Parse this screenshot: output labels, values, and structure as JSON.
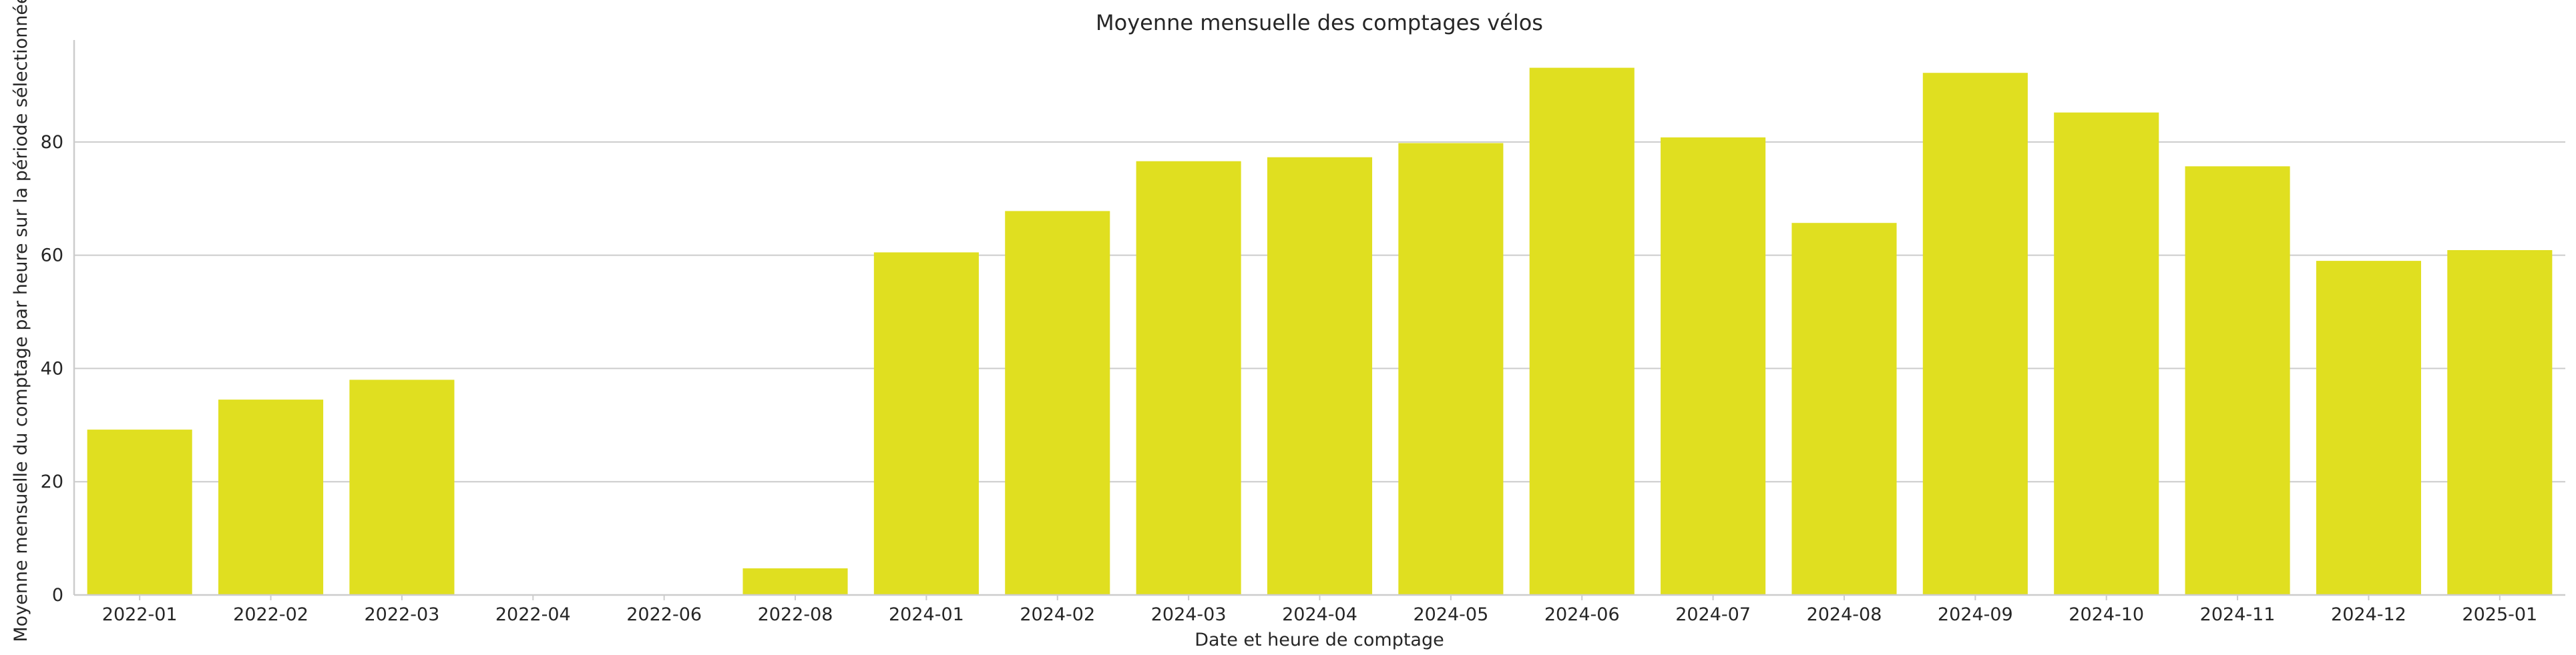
{
  "chart_data": {
    "type": "bar",
    "title": "Moyenne mensuelle des comptages vélos",
    "xlabel": "Date et heure de comptage",
    "ylabel": "Moyenne mensuelle du comptage par heure sur la période sélectionnée",
    "categories": [
      "2022-01",
      "2022-02",
      "2022-03",
      "2022-04",
      "2022-06",
      "2022-08",
      "2024-01",
      "2024-02",
      "2024-03",
      "2024-04",
      "2024-05",
      "2024-06",
      "2024-07",
      "2024-08",
      "2024-09",
      "2024-10",
      "2024-11",
      "2024-12",
      "2025-01"
    ],
    "values": [
      29.2,
      34.5,
      38.0,
      0.1,
      0.1,
      4.7,
      60.5,
      67.8,
      76.6,
      77.3,
      79.8,
      93.1,
      80.8,
      65.7,
      92.2,
      85.2,
      75.7,
      59.0,
      60.9
    ],
    "ylim": [
      0,
      98
    ],
    "yticks": [
      0,
      20,
      40,
      60,
      80
    ],
    "grid": "horizontal",
    "colors": {
      "bar": "#e0df20"
    }
  }
}
